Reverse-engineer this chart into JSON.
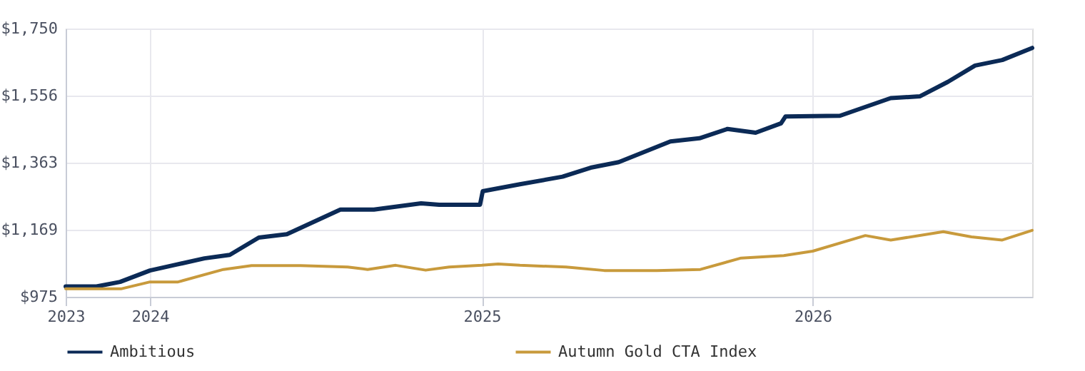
{
  "chart_data": {
    "type": "line",
    "xlim": [
      "2023-09-30",
      "2026-08-31"
    ],
    "xticks": [
      {
        "value": "2023-09-30",
        "label": "2023"
      },
      {
        "value": "2024-01-01",
        "label": "2024"
      },
      {
        "value": "2025-01-01",
        "label": "2025"
      },
      {
        "value": "2026-01-01",
        "label": "2026"
      }
    ],
    "ylim": [
      975,
      1750
    ],
    "yticks": [
      {
        "value": 975,
        "label": "$975"
      },
      {
        "value": 1169,
        "label": "$1,169"
      },
      {
        "value": 1363,
        "label": "$1,363"
      },
      {
        "value": 1556,
        "label": "$1,556"
      },
      {
        "value": 1750,
        "label": "$1,750"
      }
    ],
    "grid": true,
    "legend": "bottom",
    "marker": "none",
    "line_style": "solid",
    "series": [
      {
        "name": "Ambitious",
        "color": "#0b2a56",
        "x": [
          "2023-09-30",
          "2023-11-03",
          "2023-11-29",
          "2024-01-01",
          "2024-01-30",
          "2024-03-01",
          "2024-03-29",
          "2024-04-30",
          "2024-05-31",
          "2024-07-29",
          "2024-09-04",
          "2024-10-26",
          "2024-11-15",
          "2024-12-30",
          "2025-01-02",
          "2025-02-12",
          "2025-03-31",
          "2025-05-01",
          "2025-06-01",
          "2025-07-28",
          "2025-08-29",
          "2025-09-29",
          "2025-10-30",
          "2025-11-27",
          "2025-12-02",
          "2026-01-31",
          "2026-03-28",
          "2026-04-29",
          "2026-05-30",
          "2026-06-29",
          "2026-07-29",
          "2026-08-31"
        ],
        "values": [
          1005,
          1005,
          1018,
          1051,
          1068,
          1086,
          1096,
          1146,
          1156,
          1227,
          1227,
          1245,
          1241,
          1241,
          1280,
          1300,
          1322,
          1348,
          1364,
          1424,
          1433,
          1460,
          1449,
          1476,
          1496,
          1498,
          1549,
          1554,
          1596,
          1643,
          1659,
          1694
        ]
      },
      {
        "name": "Autumn Gold CTA Index",
        "color": "#c89a3c",
        "x": [
          "2023-09-30",
          "2023-11-30",
          "2024-01-01",
          "2024-02-01",
          "2024-03-22",
          "2024-04-22",
          "2024-06-15",
          "2024-08-06",
          "2024-08-28",
          "2024-09-28",
          "2024-10-31",
          "2024-11-26",
          "2025-01-01",
          "2025-01-19",
          "2025-02-12",
          "2025-04-04",
          "2025-05-16",
          "2025-07-13",
          "2025-08-30",
          "2025-10-14",
          "2025-11-30",
          "2026-01-01",
          "2026-02-28",
          "2026-03-28",
          "2026-05-25",
          "2026-06-25",
          "2026-07-29",
          "2026-08-31"
        ],
        "values": [
          998,
          998,
          1018,
          1018,
          1054,
          1065,
          1065,
          1061,
          1054,
          1066,
          1052,
          1061,
          1066,
          1070,
          1066,
          1061,
          1051,
          1051,
          1054,
          1087,
          1094,
          1107,
          1152,
          1139,
          1163,
          1148,
          1139,
          1167
        ]
      }
    ]
  }
}
